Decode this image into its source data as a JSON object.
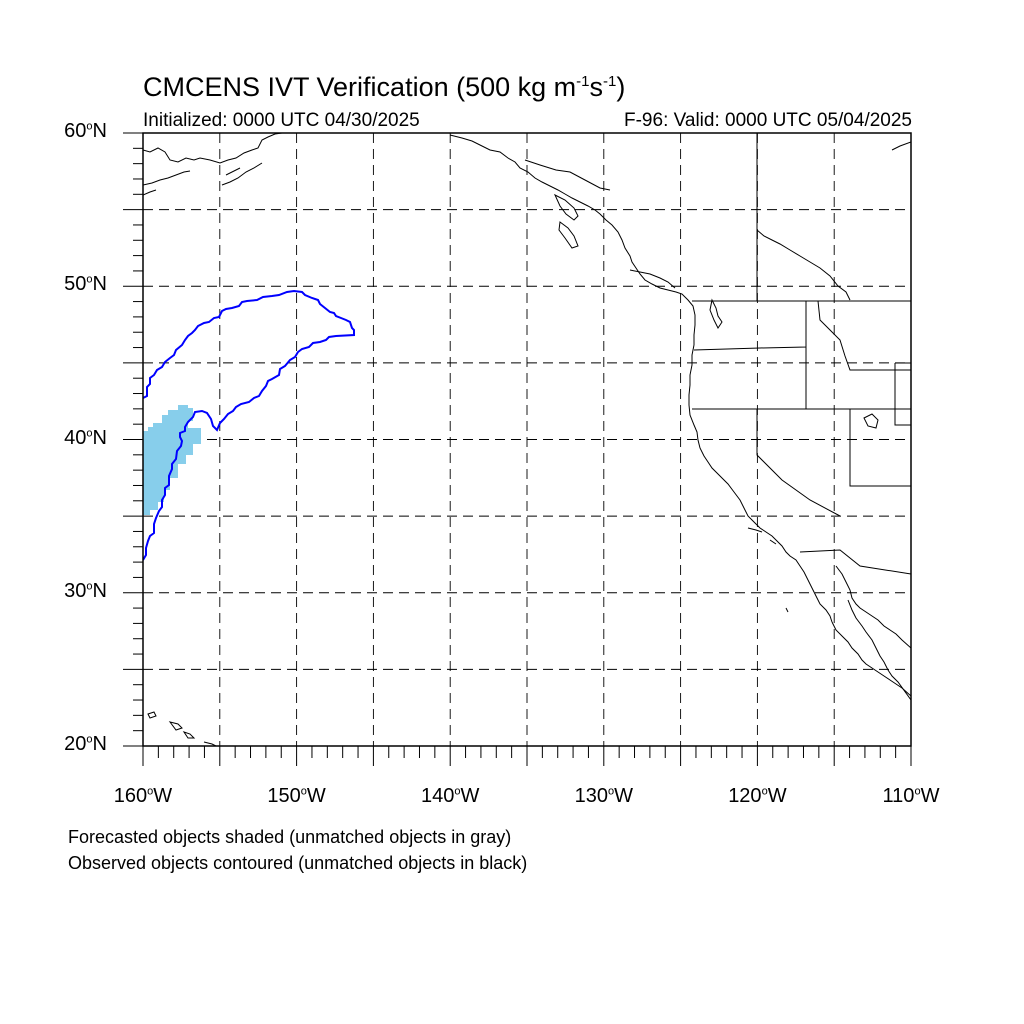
{
  "title": {
    "main": "CMCENS IVT Verification (500 kg m",
    "exp1": "-1",
    "mid": "s",
    "exp2": "-1",
    "close": ")"
  },
  "subtitle_left": "Initialized: 0000 UTC 04/30/2025",
  "subtitle_right": "F-96: Valid: 0000 UTC 05/04/2025",
  "map": {
    "lon_range": [
      -160,
      -110
    ],
    "lat_range": [
      20,
      60
    ],
    "grid": "dashed every 5 degrees",
    "lat_labels": [
      {
        "value": 60,
        "text": "60",
        "hemi": "N"
      },
      {
        "value": 50,
        "text": "50",
        "hemi": "N"
      },
      {
        "value": 40,
        "text": "40",
        "hemi": "N"
      },
      {
        "value": 30,
        "text": "30",
        "hemi": "N"
      },
      {
        "value": 20,
        "text": "20",
        "hemi": "N"
      }
    ],
    "lon_labels": [
      {
        "value": -160,
        "text": "160",
        "hemi": "W"
      },
      {
        "value": -150,
        "text": "150",
        "hemi": "W"
      },
      {
        "value": -140,
        "text": "140",
        "hemi": "W"
      },
      {
        "value": -130,
        "text": "130",
        "hemi": "W"
      },
      {
        "value": -120,
        "text": "120",
        "hemi": "W"
      },
      {
        "value": -110,
        "text": "110",
        "hemi": "W"
      }
    ],
    "colors": {
      "forecast_shade": "#87ceeb",
      "observed_contour": "#0000ff",
      "coastline": "#000000",
      "grid": "#000000"
    }
  },
  "legend": {
    "line1": "Forecasted objects shaded (unmatched objects in gray)",
    "line2": "Observed objects contoured (unmatched objects in black)"
  }
}
